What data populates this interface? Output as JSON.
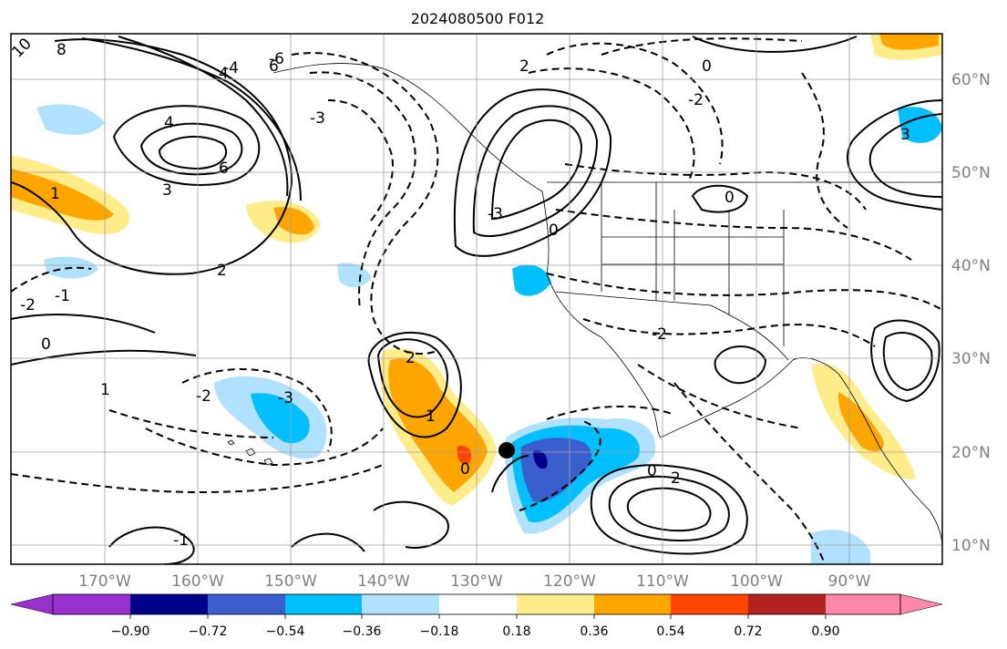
{
  "title": "2024080500 F012",
  "map": {
    "lon_range": [
      -180,
      -80
    ],
    "lat_range": [
      8,
      65
    ],
    "grid": true,
    "lon_ticks": [
      "170°W",
      "160°W",
      "150°W",
      "140°W",
      "130°W",
      "120°W",
      "110°W",
      "100°W",
      "90°W"
    ],
    "lat_ticks": [
      "60°N",
      "50°N",
      "40°N",
      "30°N",
      "20°N",
      "10°N"
    ],
    "marker": {
      "lon": -126,
      "lat": 20,
      "color": "#000000"
    },
    "contour_labels": [
      "10",
      "8",
      "6",
      "4",
      "3",
      "2",
      "1",
      "0",
      "-1",
      "-2",
      "-3",
      "-4",
      "-6"
    ]
  },
  "colorbar": {
    "colors": [
      "#9932cc",
      "#00008b",
      "#3a5fcd",
      "#00bfff",
      "#b0e2ff",
      "#ffffff",
      "#ffec8b",
      "#ffa500",
      "#ff4500",
      "#b22222",
      "#ff88aa"
    ],
    "tick_labels": [
      "−0.90",
      "−0.72",
      "−0.54",
      "−0.36",
      "−0.18",
      "0.18",
      "0.36",
      "0.54",
      "0.72",
      "0.90"
    ]
  }
}
